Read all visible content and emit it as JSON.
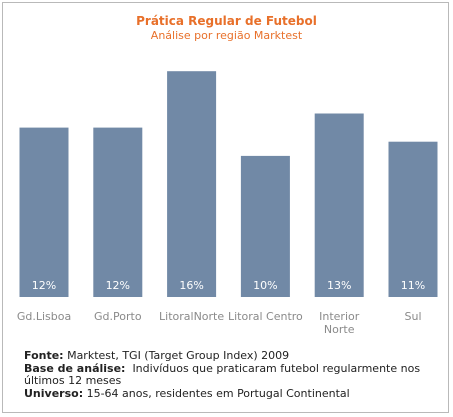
{
  "chart_data": {
    "type": "bar",
    "title": "Prática Regular de Futebol",
    "subtitle": "Análise por região Marktest",
    "categories": [
      [
        "Gd.Lisboa"
      ],
      [
        "Gd.Porto"
      ],
      [
        "LitoralNorte"
      ],
      [
        "Litoral Centro"
      ],
      [
        "Interior",
        "Norte"
      ],
      [
        "Sul"
      ]
    ],
    "values": [
      12,
      12,
      16,
      10,
      13,
      11
    ],
    "value_labels": [
      "12%",
      "12%",
      "16%",
      "10%",
      "13%",
      "11%"
    ],
    "unit": "%",
    "ylim": [
      0,
      17.5
    ],
    "grid": false,
    "bar_color": "#7189a6"
  },
  "notes": {
    "fonte_label": "Fonte:",
    "fonte_value": "Marktest, TGI (Target Group Index) 2009",
    "base_label": "Base de análise:",
    "base_value": "Indivíduos que praticaram futebol regularmente nos últimos 12 meses",
    "universo_label": "Universo:",
    "universo_value": "15-64 anos, residentes em Portugal Continental"
  }
}
